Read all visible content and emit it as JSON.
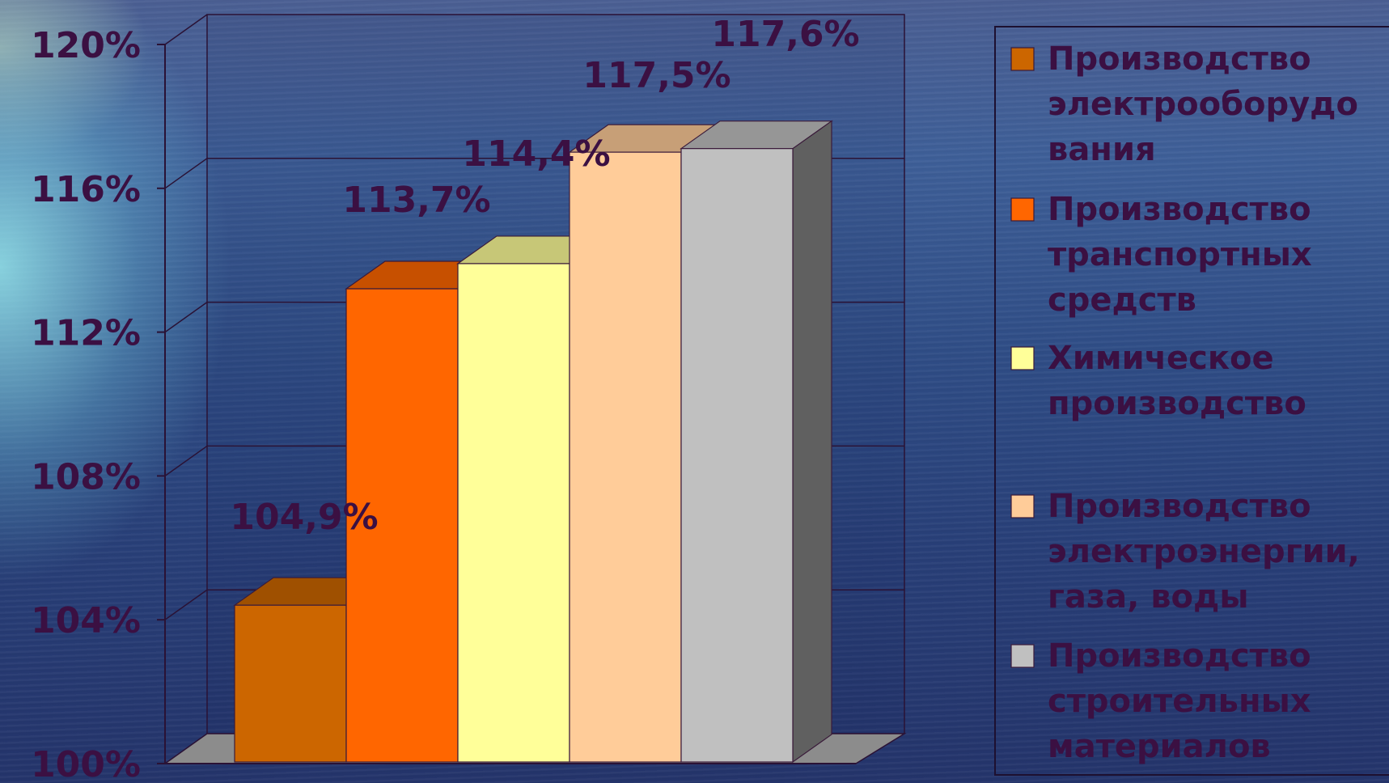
{
  "chart_data": {
    "type": "bar",
    "title": "",
    "xlabel": "",
    "ylabel": "",
    "ylim": [
      100,
      120
    ],
    "yticks": [
      "100%",
      "104%",
      "108%",
      "112%",
      "116%",
      "120%"
    ],
    "ytick_values": [
      100,
      104,
      108,
      112,
      116,
      120
    ],
    "grid": true,
    "legend_position": "right",
    "categories": [
      "Производство электрооборудования",
      "Производство транспортных средств",
      "Химическое производство",
      "Производство электроэнергии, газа, воды",
      "Производство строительных материалов"
    ],
    "values": [
      104.9,
      113.7,
      114.4,
      117.5,
      117.6
    ],
    "data_labels": [
      "104,9%",
      "113,7%",
      "114,4%",
      "117,5%",
      "117,6%"
    ],
    "colors": [
      "#cc6600",
      "#ff6600",
      "#ffff99",
      "#ffcc99",
      "#c0c0c0"
    ],
    "legend": [
      {
        "lines": [
          "Производство",
          "электрооборудо",
          "вания"
        ]
      },
      {
        "lines": [
          "Производство",
          "транспортных",
          "средств"
        ]
      },
      {
        "lines": [
          "Химическое",
          "производство"
        ]
      },
      {
        "lines": [
          "Производство",
          "электроэнергии,",
          "газа, воды"
        ]
      },
      {
        "lines": [
          "Производство",
          "строительных",
          "материалов"
        ]
      }
    ]
  }
}
